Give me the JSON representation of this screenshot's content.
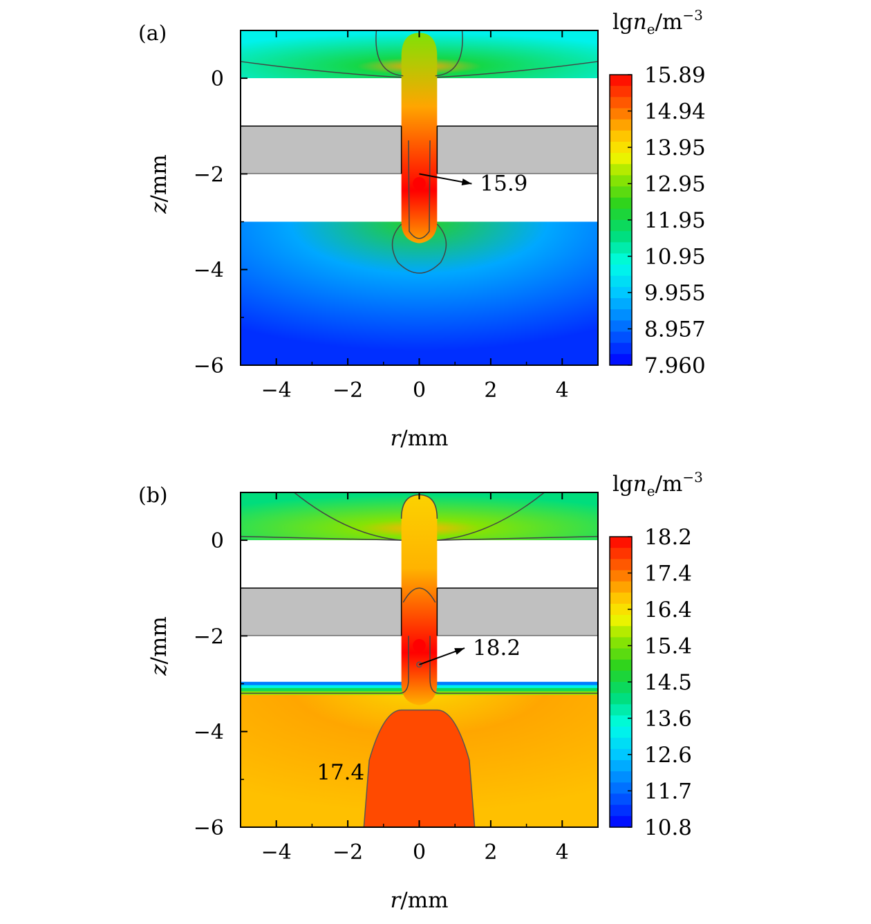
{
  "chart_data": [
    {
      "type": "heatmap",
      "panel_label": "(a)",
      "xlabel_var": "r",
      "xlabel_unit": "/mm",
      "ylabel_var": "z",
      "ylabel_unit": "/mm",
      "xlim": [
        -5,
        5
      ],
      "ylim": [
        -6,
        1
      ],
      "xticks": [
        "−4",
        "−2",
        "0",
        "2",
        "4"
      ],
      "xtick_values": [
        -4,
        -2,
        0,
        2,
        4
      ],
      "yticks": [
        "0",
        "−2",
        "−4",
        "−6"
      ],
      "ytick_values": [
        0,
        -2,
        -4,
        -6
      ],
      "colorbar_title": {
        "lg": "lg",
        "n": "n",
        "sub": "e",
        "unit": "/m",
        "sup": "−3"
      },
      "colorbar_min": 7.96,
      "colorbar_max": 15.89,
      "colorbar_ticks": [
        "15.89",
        "14.94",
        "13.95",
        "12.95",
        "11.95",
        "10.95",
        "9.955",
        "8.957",
        "7.960"
      ],
      "colorbar_tick_values": [
        15.89,
        14.94,
        13.95,
        12.95,
        11.95,
        10.95,
        9.955,
        8.957,
        7.96
      ],
      "annotation": {
        "text": "15.9",
        "point": [
          0,
          -2.0
        ],
        "label_at": [
          1.7,
          -2.35
        ]
      },
      "regions": {
        "top": 10.95,
        "jet": 14.5,
        "core": 15.9,
        "bottom": 9.6
      }
    },
    {
      "type": "heatmap",
      "panel_label": "(b)",
      "xlabel_var": "r",
      "xlabel_unit": "/mm",
      "ylabel_var": "z",
      "ylabel_unit": "/mm",
      "xlim": [
        -5,
        5
      ],
      "ylim": [
        -6,
        1
      ],
      "xticks": [
        "−4",
        "−2",
        "0",
        "2",
        "4"
      ],
      "xtick_values": [
        -4,
        -2,
        0,
        2,
        4
      ],
      "yticks": [
        "0",
        "−2",
        "−4",
        "−6"
      ],
      "ytick_values": [
        0,
        -2,
        -4,
        -6
      ],
      "colorbar_title": {
        "lg": "lg",
        "n": "n",
        "sub": "e",
        "unit": "/m",
        "sup": "−3"
      },
      "colorbar_min": 10.8,
      "colorbar_max": 18.2,
      "colorbar_ticks": [
        "18.2",
        "17.4",
        "16.4",
        "15.4",
        "14.5",
        "13.6",
        "12.6",
        "11.7",
        "10.8"
      ],
      "colorbar_tick_values": [
        18.2,
        17.4,
        16.4,
        15.4,
        14.5,
        13.6,
        12.6,
        11.7,
        10.8
      ],
      "annotation": {
        "text": "18.2",
        "point": [
          0,
          -2.6
        ],
        "label_at": [
          1.5,
          -2.4
        ]
      },
      "annotation2": {
        "text": "17.4",
        "label_at": [
          -2.2,
          -5.0
        ]
      },
      "regions": {
        "top": 14.5,
        "jet": 16.8,
        "core": 18.2,
        "bottom": 16.9
      }
    }
  ]
}
